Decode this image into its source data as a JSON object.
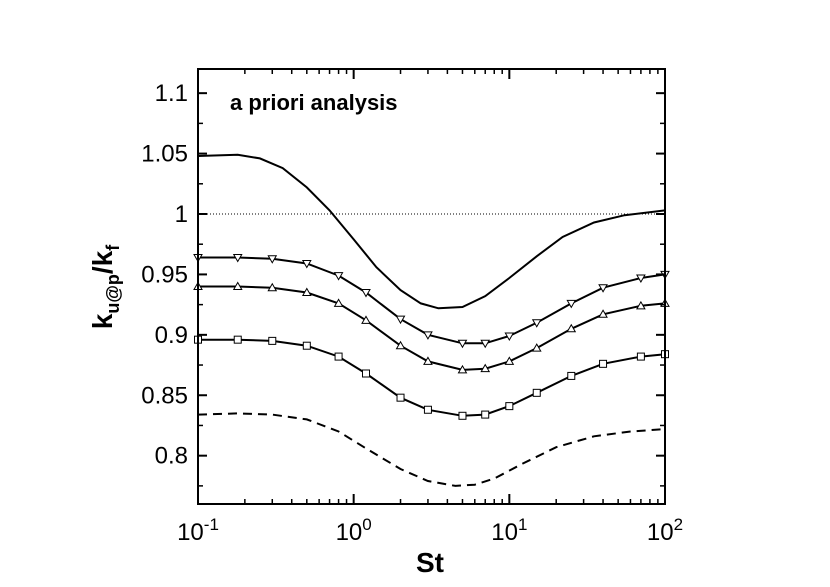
{
  "chart_data": {
    "type": "line",
    "title": "",
    "annotation": "a priori analysis",
    "xlabel": "St",
    "ylabel": {
      "base": "k",
      "num_sub": "u@p",
      "den_base": "k",
      "den_sub": "f"
    },
    "xscale": "log",
    "xlim": [
      0.1,
      100
    ],
    "ylim": [
      0.76,
      1.12
    ],
    "grid": false,
    "legend": "none",
    "x_ticks": [
      {
        "value": 0.1,
        "base": "10",
        "exp": "-1"
      },
      {
        "value": 1,
        "base": "10",
        "exp": "0"
      },
      {
        "value": 10,
        "base": "10",
        "exp": "1"
      },
      {
        "value": 100,
        "base": "10",
        "exp": "2"
      }
    ],
    "y_ticks": [
      {
        "value": 0.8,
        "label": "0.8"
      },
      {
        "value": 0.85,
        "label": "0.85"
      },
      {
        "value": 0.9,
        "label": "0.9"
      },
      {
        "value": 0.95,
        "label": "0.95"
      },
      {
        "value": 1.0,
        "label": "1"
      },
      {
        "value": 1.05,
        "label": "1.05"
      },
      {
        "value": 1.1,
        "label": "1.1"
      }
    ],
    "reference_line": {
      "y": 1.0,
      "style": "dotted"
    },
    "series": [
      {
        "style": "solid",
        "marker": "none",
        "x": [
          0.1,
          0.18,
          0.25,
          0.35,
          0.5,
          0.7,
          1.0,
          1.4,
          2.0,
          2.7,
          3.5,
          5.0,
          7.0,
          10,
          15,
          22,
          35,
          55,
          100
        ],
        "y": [
          1.048,
          1.049,
          1.046,
          1.038,
          1.022,
          1.003,
          0.979,
          0.956,
          0.937,
          0.926,
          0.922,
          0.923,
          0.932,
          0.947,
          0.965,
          0.981,
          0.993,
          0.999,
          1.003
        ]
      },
      {
        "style": "solid",
        "marker": "triangle-down",
        "x": [
          0.1,
          0.18,
          0.3,
          0.5,
          0.8,
          1.2,
          2.0,
          3.0,
          5.0,
          7.0,
          10,
          15,
          25,
          40,
          70,
          100
        ],
        "y": [
          0.964,
          0.964,
          0.963,
          0.959,
          0.949,
          0.935,
          0.913,
          0.9,
          0.893,
          0.893,
          0.899,
          0.91,
          0.926,
          0.939,
          0.947,
          0.95
        ]
      },
      {
        "style": "solid",
        "marker": "triangle-up",
        "x": [
          0.1,
          0.18,
          0.3,
          0.5,
          0.8,
          1.2,
          2.0,
          3.0,
          5.0,
          7.0,
          10,
          15,
          25,
          40,
          70,
          100
        ],
        "y": [
          0.94,
          0.94,
          0.939,
          0.935,
          0.926,
          0.912,
          0.891,
          0.878,
          0.871,
          0.872,
          0.878,
          0.889,
          0.905,
          0.917,
          0.924,
          0.926
        ]
      },
      {
        "style": "solid",
        "marker": "square",
        "x": [
          0.1,
          0.18,
          0.3,
          0.5,
          0.8,
          1.2,
          2.0,
          3.0,
          5.0,
          7.0,
          10,
          15,
          25,
          40,
          70,
          100
        ],
        "y": [
          0.896,
          0.896,
          0.895,
          0.891,
          0.882,
          0.868,
          0.848,
          0.838,
          0.833,
          0.834,
          0.841,
          0.852,
          0.866,
          0.876,
          0.882,
          0.884
        ]
      },
      {
        "style": "dashed",
        "marker": "none",
        "x": [
          0.1,
          0.18,
          0.3,
          0.5,
          0.8,
          1.2,
          2.0,
          3.0,
          4.5,
          6.0,
          8.0,
          12,
          20,
          35,
          60,
          100
        ],
        "y": [
          0.834,
          0.835,
          0.834,
          0.83,
          0.82,
          0.806,
          0.789,
          0.779,
          0.775,
          0.776,
          0.781,
          0.793,
          0.807,
          0.816,
          0.82,
          0.822
        ]
      }
    ]
  }
}
